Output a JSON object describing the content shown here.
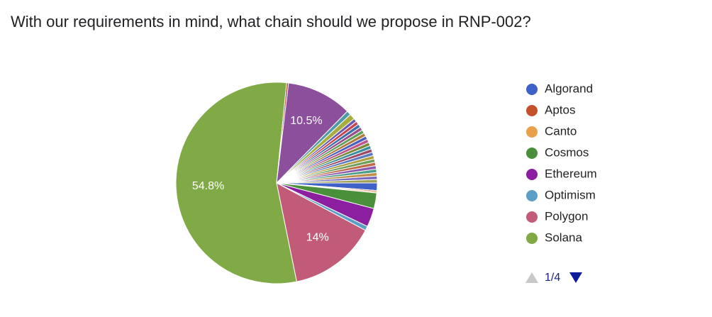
{
  "chart_data": {
    "type": "pie",
    "title": "With our requirements in mind, what chain should we propose in RNP-002?",
    "categories": [
      "Algorand",
      "Aptos",
      "Canto",
      "Cosmos",
      "Ethereum",
      "Optimism",
      "Polygon",
      "Solana",
      null,
      null,
      null,
      null,
      null,
      null,
      null,
      null,
      null,
      null,
      null,
      null,
      null,
      null,
      null,
      null,
      null,
      null,
      null,
      null,
      null,
      null,
      null,
      null
    ],
    "values": [
      1.2,
      0.2,
      0.2,
      2.5,
      3,
      0.7,
      14,
      54.8,
      0.3,
      10.5,
      0.7,
      0.9,
      0.55,
      0.55,
      0.55,
      0.55,
      0.55,
      0.55,
      0.55,
      0.55,
      0.55,
      0.55,
      0.55,
      0.55,
      0.55,
      0.55,
      0.55,
      0.55,
      0.55,
      0.55,
      0.55,
      0.55
    ],
    "value_labels": [
      null,
      null,
      null,
      null,
      null,
      null,
      "14%",
      "54.8%",
      null,
      "10.5%",
      null,
      null,
      null,
      null,
      null,
      null,
      null,
      null,
      null,
      null,
      null,
      null,
      null,
      null,
      null,
      null,
      null,
      null,
      null,
      null,
      null,
      null
    ],
    "colors": [
      "#3e62c8",
      "#c4512b",
      "#e9a04b",
      "#4a8f3a",
      "#8c1ea0",
      "#5b9fc9",
      "#c25b78",
      "#7faa45",
      "#b04a3a",
      "#8b4f9c",
      "#4f9aa8",
      "#a8ad3e",
      "#6a5bb0",
      "#c8454f",
      "#3d6fa8",
      "#9a4f8c",
      "#5ea05a",
      "#b07a3a",
      "#4a5fc0",
      "#c0558a",
      "#7a8a3a",
      "#3a8fa0",
      "#a04a6a",
      "#5a7ac0",
      "#b0a040",
      "#6aa05a",
      "#c06a4a",
      "#8a5ab0",
      "#4aa08a",
      "#c0904a",
      "#7a6ac0",
      "#a0a05a"
    ],
    "legend_page": "1/4"
  }
}
